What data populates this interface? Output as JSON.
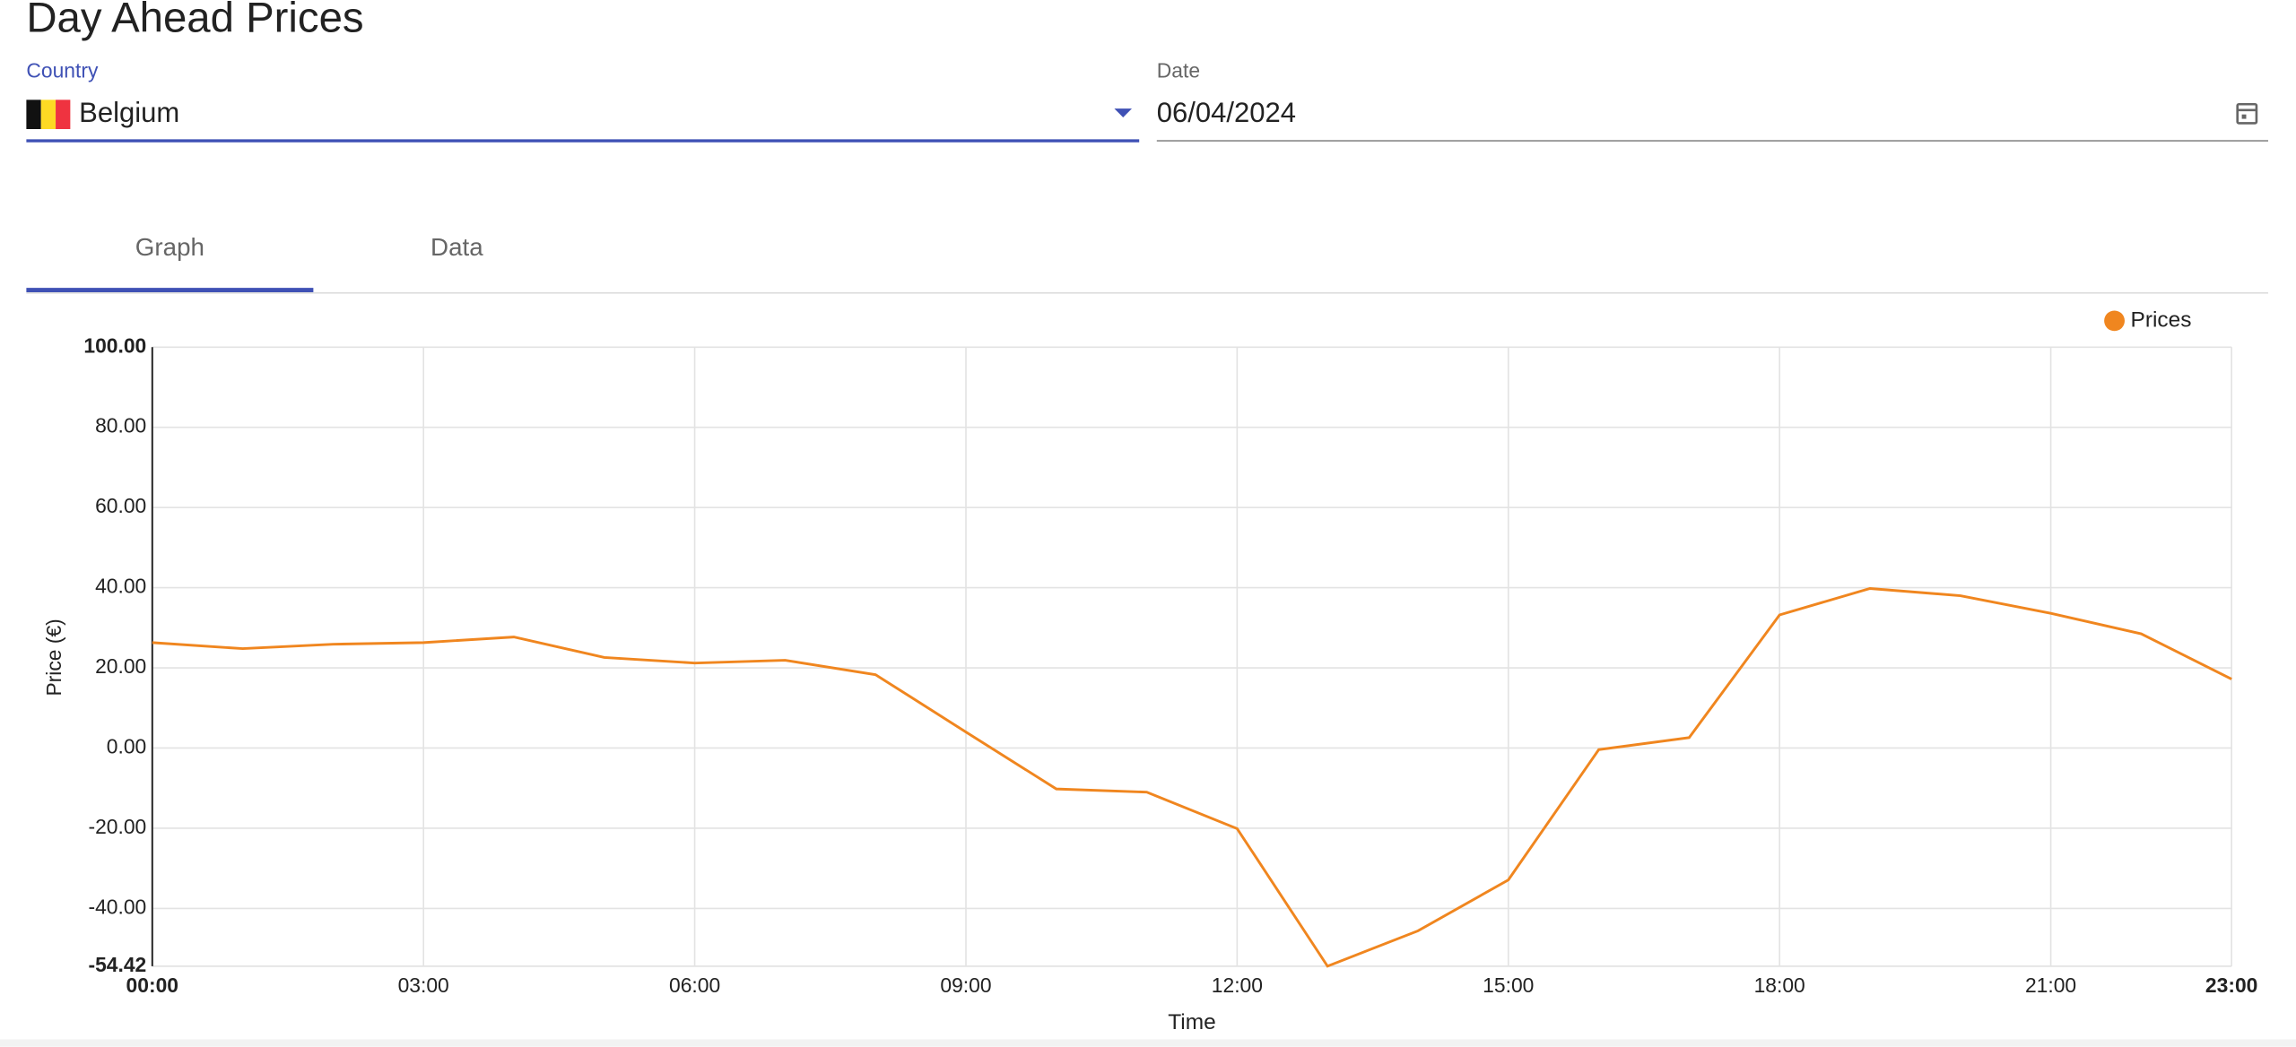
{
  "page": {
    "title": "Day Ahead Prices",
    "country_label": "Country",
    "country_value": "Belgium",
    "date_label": "Date",
    "date_value": "06/04/2024",
    "tabs": [
      "Graph",
      "Data"
    ]
  },
  "chart_data": {
    "type": "line",
    "x": [
      0,
      1,
      2,
      3,
      4,
      5,
      6,
      7,
      8,
      9,
      10,
      11,
      12,
      13,
      14,
      15,
      16,
      17,
      18,
      19,
      20,
      21,
      22,
      23
    ],
    "series": [
      {
        "name": "Prices",
        "color": "#f0861f",
        "values": [
          26.3,
          24.8,
          25.9,
          26.3,
          27.7,
          22.6,
          21.2,
          21.9,
          18.3,
          4.0,
          -10.2,
          -11.0,
          -20.1,
          -54.42,
          -45.6,
          -32.9,
          -0.4,
          2.6,
          33.2,
          39.8,
          38.0,
          33.6,
          28.5,
          17.2
        ]
      }
    ],
    "xlim": [
      0,
      23
    ],
    "xticks": [
      {
        "value": 0,
        "label": "00:00"
      },
      {
        "value": 3,
        "label": "03:00"
      },
      {
        "value": 6,
        "label": "06:00"
      },
      {
        "value": 9,
        "label": "09:00"
      },
      {
        "value": 12,
        "label": "12:00"
      },
      {
        "value": 15,
        "label": "15:00"
      },
      {
        "value": 18,
        "label": "18:00"
      },
      {
        "value": 21,
        "label": "21:00"
      },
      {
        "value": 23,
        "label": "23:00"
      }
    ],
    "ylim": [
      -54.42,
      100
    ],
    "yticks": [
      {
        "value": -54.42,
        "label": "-54.42"
      },
      {
        "value": -40,
        "label": "-40.00"
      },
      {
        "value": -20,
        "label": "-20.00"
      },
      {
        "value": 0,
        "label": "0.00"
      },
      {
        "value": 20,
        "label": "20.00"
      },
      {
        "value": 40,
        "label": "40.00"
      },
      {
        "value": 60,
        "label": "60.00"
      },
      {
        "value": 80,
        "label": "80.00"
      },
      {
        "value": 100,
        "label": "100.00"
      }
    ],
    "x_label": "Time",
    "y_label": "Price (€)",
    "grid": true,
    "legend": "top-right"
  }
}
